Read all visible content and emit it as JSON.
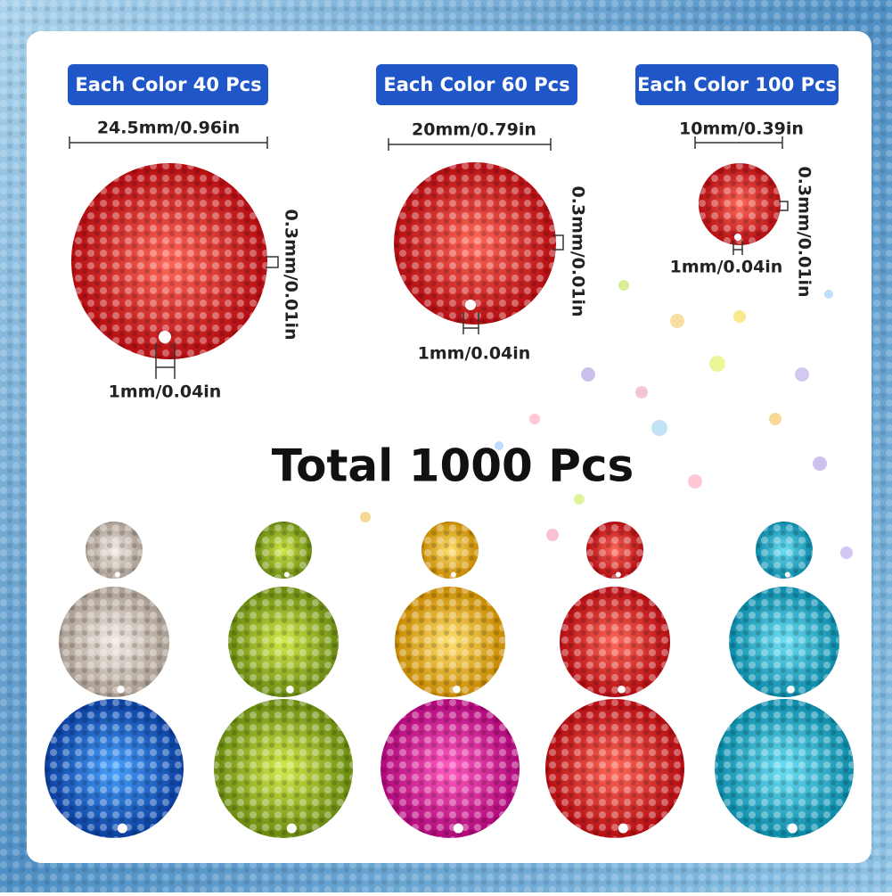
{
  "total": "Total 1000 Pcs",
  "sizes": [
    {
      "badge": "Each Color 40 Pcs",
      "diameter": "24.5mm/0.96in",
      "thickness": "0.3mm/0.01in",
      "hole": "1mm/0.04in"
    },
    {
      "badge": "Each Color 60 Pcs",
      "diameter": "20mm/0.79in",
      "thickness": "0.3mm/0.01in",
      "hole": "1mm/0.04in"
    },
    {
      "badge": "Each Color 100 Pcs",
      "diameter": "10mm/0.39in",
      "thickness": "0.3mm/0.01in",
      "hole": "1mm/0.04in"
    }
  ]
}
